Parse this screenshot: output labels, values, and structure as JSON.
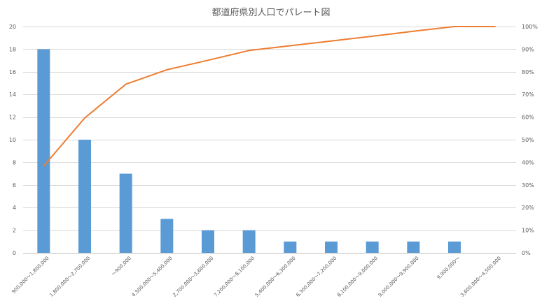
{
  "chart_data": {
    "type": "bar",
    "title": "都道府県別人口でパレート図",
    "xlabel": "",
    "ylabel": "",
    "categories": [
      "900,000～1,800,000",
      "1,800,000～2,700,000",
      "～900,000",
      "4,500,000～5,400,000",
      "2,700,000～3,600,000",
      "7,200,000～8,100,000",
      "5,400,000～6,300,000",
      "6,300,000～7,200,000",
      "8,100,000～9,000,000",
      "9,000,000～9,900,000",
      "9,900,000～",
      "3,600,000～4,500,000"
    ],
    "series": [
      {
        "type": "bar",
        "values": [
          18,
          10,
          7,
          3,
          2,
          2,
          1,
          1,
          1,
          1,
          1,
          0
        ],
        "color": "#5b9bd5"
      },
      {
        "type": "line",
        "axis": "right",
        "values": [
          38.3,
          59.6,
          74.5,
          80.9,
          85.1,
          89.4,
          91.5,
          93.6,
          95.7,
          97.9,
          100,
          100
        ],
        "color": "#ed7d31"
      }
    ],
    "ylim": [
      0,
      20
    ],
    "y_ticks": [
      "0",
      "2",
      "4",
      "6",
      "8",
      "10",
      "12",
      "14",
      "16",
      "18",
      "20"
    ],
    "y2lim": [
      0,
      100
    ],
    "y2_ticks": [
      "0%",
      "10%",
      "20%",
      "30%",
      "40%",
      "50%",
      "60%",
      "70%",
      "80%",
      "90%",
      "100%"
    ],
    "grid": true,
    "legend": "none"
  }
}
